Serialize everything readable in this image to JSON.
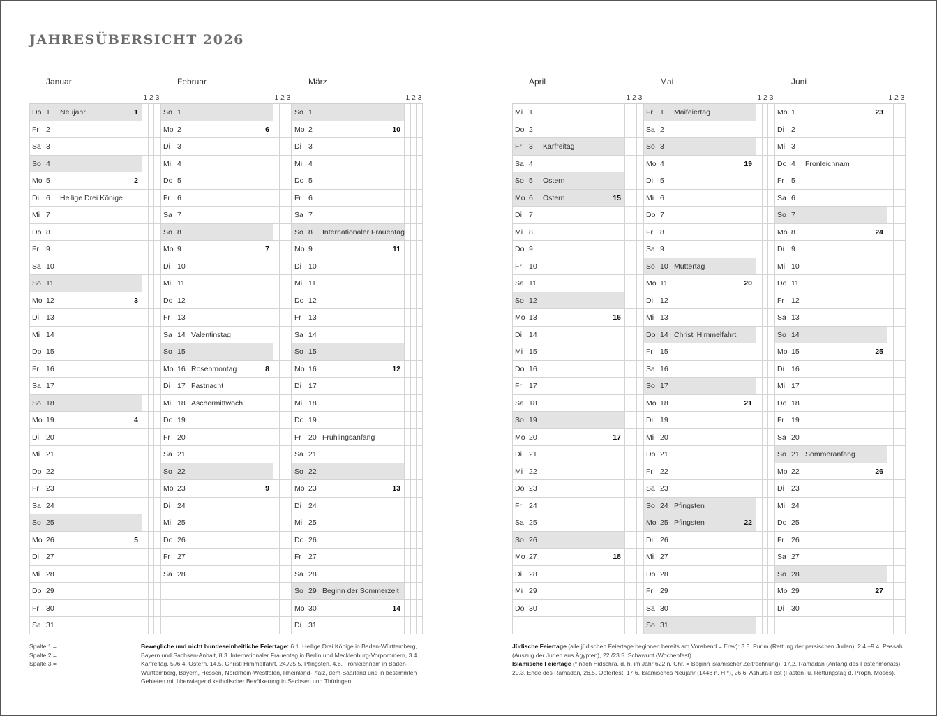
{
  "title": "JAHRESÜBERSICHT 2026",
  "column_header": [
    "1",
    "2",
    "3"
  ],
  "months": [
    {
      "name": "Januar",
      "rows": [
        [
          "Do",
          "1",
          "Neujahr",
          "1",
          1
        ],
        [
          "Fr",
          "2",
          "",
          "",
          0
        ],
        [
          "Sa",
          "3",
          "",
          "",
          0
        ],
        [
          "So",
          "4",
          "",
          "",
          1
        ],
        [
          "Mo",
          "5",
          "",
          "2",
          0
        ],
        [
          "Di",
          "6",
          "Heilige Drei Könige",
          "",
          0
        ],
        [
          "Mi",
          "7",
          "",
          "",
          0
        ],
        [
          "Do",
          "8",
          "",
          "",
          0
        ],
        [
          "Fr",
          "9",
          "",
          "",
          0
        ],
        [
          "Sa",
          "10",
          "",
          "",
          0
        ],
        [
          "So",
          "11",
          "",
          "",
          1
        ],
        [
          "Mo",
          "12",
          "",
          "3",
          0
        ],
        [
          "Di",
          "13",
          "",
          "",
          0
        ],
        [
          "Mi",
          "14",
          "",
          "",
          0
        ],
        [
          "Do",
          "15",
          "",
          "",
          0
        ],
        [
          "Fr",
          "16",
          "",
          "",
          0
        ],
        [
          "Sa",
          "17",
          "",
          "",
          0
        ],
        [
          "So",
          "18",
          "",
          "",
          1
        ],
        [
          "Mo",
          "19",
          "",
          "4",
          0
        ],
        [
          "Di",
          "20",
          "",
          "",
          0
        ],
        [
          "Mi",
          "21",
          "",
          "",
          0
        ],
        [
          "Do",
          "22",
          "",
          "",
          0
        ],
        [
          "Fr",
          "23",
          "",
          "",
          0
        ],
        [
          "Sa",
          "24",
          "",
          "",
          0
        ],
        [
          "So",
          "25",
          "",
          "",
          1
        ],
        [
          "Mo",
          "26",
          "",
          "5",
          0
        ],
        [
          "Di",
          "27",
          "",
          "",
          0
        ],
        [
          "Mi",
          "28",
          "",
          "",
          0
        ],
        [
          "Do",
          "29",
          "",
          "",
          0
        ],
        [
          "Fr",
          "30",
          "",
          "",
          0
        ],
        [
          "Sa",
          "31",
          "",
          "",
          0
        ]
      ]
    },
    {
      "name": "Februar",
      "rows": [
        [
          "So",
          "1",
          "",
          "",
          1
        ],
        [
          "Mo",
          "2",
          "",
          "6",
          0
        ],
        [
          "Di",
          "3",
          "",
          "",
          0
        ],
        [
          "Mi",
          "4",
          "",
          "",
          0
        ],
        [
          "Do",
          "5",
          "",
          "",
          0
        ],
        [
          "Fr",
          "6",
          "",
          "",
          0
        ],
        [
          "Sa",
          "7",
          "",
          "",
          0
        ],
        [
          "So",
          "8",
          "",
          "",
          1
        ],
        [
          "Mo",
          "9",
          "",
          "7",
          0
        ],
        [
          "Di",
          "10",
          "",
          "",
          0
        ],
        [
          "Mi",
          "11",
          "",
          "",
          0
        ],
        [
          "Do",
          "12",
          "",
          "",
          0
        ],
        [
          "Fr",
          "13",
          "",
          "",
          0
        ],
        [
          "Sa",
          "14",
          "Valentinstag",
          "",
          0
        ],
        [
          "So",
          "15",
          "",
          "",
          1
        ],
        [
          "Mo",
          "16",
          "Rosenmontag",
          "8",
          0
        ],
        [
          "Di",
          "17",
          "Fastnacht",
          "",
          0
        ],
        [
          "Mi",
          "18",
          "Aschermittwoch",
          "",
          0
        ],
        [
          "Do",
          "19",
          "",
          "",
          0
        ],
        [
          "Fr",
          "20",
          "",
          "",
          0
        ],
        [
          "Sa",
          "21",
          "",
          "",
          0
        ],
        [
          "So",
          "22",
          "",
          "",
          1
        ],
        [
          "Mo",
          "23",
          "",
          "9",
          0
        ],
        [
          "Di",
          "24",
          "",
          "",
          0
        ],
        [
          "Mi",
          "25",
          "",
          "",
          0
        ],
        [
          "Do",
          "26",
          "",
          "",
          0
        ],
        [
          "Fr",
          "27",
          "",
          "",
          0
        ],
        [
          "Sa",
          "28",
          "",
          "",
          0
        ]
      ]
    },
    {
      "name": "März",
      "rows": [
        [
          "So",
          "1",
          "",
          "",
          1
        ],
        [
          "Mo",
          "2",
          "",
          "10",
          0
        ],
        [
          "Di",
          "3",
          "",
          "",
          0
        ],
        [
          "Mi",
          "4",
          "",
          "",
          0
        ],
        [
          "Do",
          "5",
          "",
          "",
          0
        ],
        [
          "Fr",
          "6",
          "",
          "",
          0
        ],
        [
          "Sa",
          "7",
          "",
          "",
          0
        ],
        [
          "So",
          "8",
          "Internationaler Frauentag",
          "",
          1
        ],
        [
          "Mo",
          "9",
          "",
          "11",
          0
        ],
        [
          "Di",
          "10",
          "",
          "",
          0
        ],
        [
          "Mi",
          "11",
          "",
          "",
          0
        ],
        [
          "Do",
          "12",
          "",
          "",
          0
        ],
        [
          "Fr",
          "13",
          "",
          "",
          0
        ],
        [
          "Sa",
          "14",
          "",
          "",
          0
        ],
        [
          "So",
          "15",
          "",
          "",
          1
        ],
        [
          "Mo",
          "16",
          "",
          "12",
          0
        ],
        [
          "Di",
          "17",
          "",
          "",
          0
        ],
        [
          "Mi",
          "18",
          "",
          "",
          0
        ],
        [
          "Do",
          "19",
          "",
          "",
          0
        ],
        [
          "Fr",
          "20",
          "Frühlingsanfang",
          "",
          0
        ],
        [
          "Sa",
          "21",
          "",
          "",
          0
        ],
        [
          "So",
          "22",
          "",
          "",
          1
        ],
        [
          "Mo",
          "23",
          "",
          "13",
          0
        ],
        [
          "Di",
          "24",
          "",
          "",
          0
        ],
        [
          "Mi",
          "25",
          "",
          "",
          0
        ],
        [
          "Do",
          "26",
          "",
          "",
          0
        ],
        [
          "Fr",
          "27",
          "",
          "",
          0
        ],
        [
          "Sa",
          "28",
          "",
          "",
          0
        ],
        [
          "So",
          "29",
          "Beginn der Sommerzeit",
          "",
          1
        ],
        [
          "Mo",
          "30",
          "",
          "14",
          0
        ],
        [
          "Di",
          "31",
          "",
          "",
          0
        ]
      ]
    },
    {
      "name": "April",
      "rows": [
        [
          "Mi",
          "1",
          "",
          "",
          0
        ],
        [
          "Do",
          "2",
          "",
          "",
          0
        ],
        [
          "Fr",
          "3",
          "Karfreitag",
          "",
          1
        ],
        [
          "Sa",
          "4",
          "",
          "",
          0
        ],
        [
          "So",
          "5",
          "Ostern",
          "",
          1
        ],
        [
          "Mo",
          "6",
          "Ostern",
          "15",
          1
        ],
        [
          "Di",
          "7",
          "",
          "",
          0
        ],
        [
          "Mi",
          "8",
          "",
          "",
          0
        ],
        [
          "Do",
          "9",
          "",
          "",
          0
        ],
        [
          "Fr",
          "10",
          "",
          "",
          0
        ],
        [
          "Sa",
          "11",
          "",
          "",
          0
        ],
        [
          "So",
          "12",
          "",
          "",
          1
        ],
        [
          "Mo",
          "13",
          "",
          "16",
          0
        ],
        [
          "Di",
          "14",
          "",
          "",
          0
        ],
        [
          "Mi",
          "15",
          "",
          "",
          0
        ],
        [
          "Do",
          "16",
          "",
          "",
          0
        ],
        [
          "Fr",
          "17",
          "",
          "",
          0
        ],
        [
          "Sa",
          "18",
          "",
          "",
          0
        ],
        [
          "So",
          "19",
          "",
          "",
          1
        ],
        [
          "Mo",
          "20",
          "",
          "17",
          0
        ],
        [
          "Di",
          "21",
          "",
          "",
          0
        ],
        [
          "Mi",
          "22",
          "",
          "",
          0
        ],
        [
          "Do",
          "23",
          "",
          "",
          0
        ],
        [
          "Fr",
          "24",
          "",
          "",
          0
        ],
        [
          "Sa",
          "25",
          "",
          "",
          0
        ],
        [
          "So",
          "26",
          "",
          "",
          1
        ],
        [
          "Mo",
          "27",
          "",
          "18",
          0
        ],
        [
          "Di",
          "28",
          "",
          "",
          0
        ],
        [
          "Mi",
          "29",
          "",
          "",
          0
        ],
        [
          "Do",
          "30",
          "",
          "",
          0
        ]
      ]
    },
    {
      "name": "Mai",
      "rows": [
        [
          "Fr",
          "1",
          "Maifeiertag",
          "",
          1
        ],
        [
          "Sa",
          "2",
          "",
          "",
          0
        ],
        [
          "So",
          "3",
          "",
          "",
          1
        ],
        [
          "Mo",
          "4",
          "",
          "19",
          0
        ],
        [
          "Di",
          "5",
          "",
          "",
          0
        ],
        [
          "Mi",
          "6",
          "",
          "",
          0
        ],
        [
          "Do",
          "7",
          "",
          "",
          0
        ],
        [
          "Fr",
          "8",
          "",
          "",
          0
        ],
        [
          "Sa",
          "9",
          "",
          "",
          0
        ],
        [
          "So",
          "10",
          "Muttertag",
          "",
          1
        ],
        [
          "Mo",
          "11",
          "",
          "20",
          0
        ],
        [
          "Di",
          "12",
          "",
          "",
          0
        ],
        [
          "Mi",
          "13",
          "",
          "",
          0
        ],
        [
          "Do",
          "14",
          "Christi Himmelfahrt",
          "",
          1
        ],
        [
          "Fr",
          "15",
          "",
          "",
          0
        ],
        [
          "Sa",
          "16",
          "",
          "",
          0
        ],
        [
          "So",
          "17",
          "",
          "",
          1
        ],
        [
          "Mo",
          "18",
          "",
          "21",
          0
        ],
        [
          "Di",
          "19",
          "",
          "",
          0
        ],
        [
          "Mi",
          "20",
          "",
          "",
          0
        ],
        [
          "Do",
          "21",
          "",
          "",
          0
        ],
        [
          "Fr",
          "22",
          "",
          "",
          0
        ],
        [
          "Sa",
          "23",
          "",
          "",
          0
        ],
        [
          "So",
          "24",
          "Pfingsten",
          "",
          1
        ],
        [
          "Mo",
          "25",
          "Pfingsten",
          "22",
          1
        ],
        [
          "Di",
          "26",
          "",
          "",
          0
        ],
        [
          "Mi",
          "27",
          "",
          "",
          0
        ],
        [
          "Do",
          "28",
          "",
          "",
          0
        ],
        [
          "Fr",
          "29",
          "",
          "",
          0
        ],
        [
          "Sa",
          "30",
          "",
          "",
          0
        ],
        [
          "So",
          "31",
          "",
          "",
          1
        ]
      ]
    },
    {
      "name": "Juni",
      "rows": [
        [
          "Mo",
          "1",
          "",
          "23",
          0
        ],
        [
          "Di",
          "2",
          "",
          "",
          0
        ],
        [
          "Mi",
          "3",
          "",
          "",
          0
        ],
        [
          "Do",
          "4",
          "Fronleichnam",
          "",
          0
        ],
        [
          "Fr",
          "5",
          "",
          "",
          0
        ],
        [
          "Sa",
          "6",
          "",
          "",
          0
        ],
        [
          "So",
          "7",
          "",
          "",
          1
        ],
        [
          "Mo",
          "8",
          "",
          "24",
          0
        ],
        [
          "Di",
          "9",
          "",
          "",
          0
        ],
        [
          "Mi",
          "10",
          "",
          "",
          0
        ],
        [
          "Do",
          "11",
          "",
          "",
          0
        ],
        [
          "Fr",
          "12",
          "",
          "",
          0
        ],
        [
          "Sa",
          "13",
          "",
          "",
          0
        ],
        [
          "So",
          "14",
          "",
          "",
          1
        ],
        [
          "Mo",
          "15",
          "",
          "25",
          0
        ],
        [
          "Di",
          "16",
          "",
          "",
          0
        ],
        [
          "Mi",
          "17",
          "",
          "",
          0
        ],
        [
          "Do",
          "18",
          "",
          "",
          0
        ],
        [
          "Fr",
          "19",
          "",
          "",
          0
        ],
        [
          "Sa",
          "20",
          "",
          "",
          0
        ],
        [
          "So",
          "21",
          "Sommeranfang",
          "",
          1
        ],
        [
          "Mo",
          "22",
          "",
          "26",
          0
        ],
        [
          "Di",
          "23",
          "",
          "",
          0
        ],
        [
          "Mi",
          "24",
          "",
          "",
          0
        ],
        [
          "Do",
          "25",
          "",
          "",
          0
        ],
        [
          "Fr",
          "26",
          "",
          "",
          0
        ],
        [
          "Sa",
          "27",
          "",
          "",
          0
        ],
        [
          "So",
          "28",
          "",
          "",
          1
        ],
        [
          "Mo",
          "29",
          "",
          "27",
          0
        ],
        [
          "Di",
          "30",
          "",
          "",
          0
        ]
      ]
    }
  ],
  "legend": {
    "spalte": [
      "Spalte  1 =",
      "Spalte  2 =",
      "Spalte  3 ="
    ]
  },
  "notes": {
    "movable_title": "Bewegliche und nicht bundeseinheitliche Feiertage:",
    "movable_text": " 6.1. Heilige Drei Könige in Baden-Württemberg, Bayern und Sachsen-Anhalt, 8.3. Internationaler Frauentag in Berlin und Mecklenburg-Vorpommern, 3.4. Karfreitag, 5./6.4. Ostern, 14.5. Christi Himmelfahrt, 24./25.5. Pfingsten, 4.6. Fronleichnam in Baden-Württemberg, Bayern, Hessen, Nordrhein-Westfalen, Rheinland-Pfalz, dem Saarland und in bestimmten Gebieten mit überwiegend katholischer Bevölkerung in Sachsen und Thüringen.",
    "jewish_title": "Jüdische Feiertage",
    "jewish_text": " (alle jüdischen Feiertage beginnen bereits am Vorabend = Erev): 3.3. Purim (Rettung der persischen Juden), 2.4.–9.4. Passah (Auszug der Juden aus Ägypten), 22./23.5. Schawuot (Wochenfest).",
    "islamic_title": "Islamische Feiertage",
    "islamic_text": " (* nach Hidschra, d. h. im Jahr 622 n. Chr. = Beginn islamischer Zeitrechnung): 17.2. Ramadan (Anfang des Fastenmonats), 20.3. Ende des Ramadan, 26.5. Opferfest, 17.6. Islamisches Neujahr (1448 n. H.*), 26.6. Ashura-Fest (Fasten- u. Rettungstag d. Proph. Moses)."
  }
}
